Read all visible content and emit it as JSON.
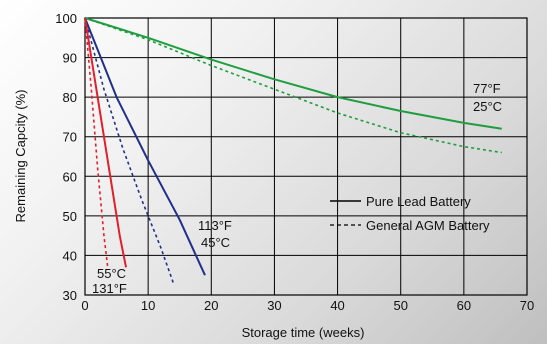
{
  "chart_data": {
    "type": "line",
    "title": "",
    "xlabel": "Storage time (weeks)",
    "ylabel": "Remaining Capcity (%)",
    "xlim": [
      0,
      70
    ],
    "ylim": [
      30,
      100
    ],
    "xticks": [
      0,
      10,
      20,
      30,
      40,
      50,
      60,
      70
    ],
    "yticks": [
      30,
      40,
      50,
      60,
      70,
      80,
      90,
      100
    ],
    "grid": true,
    "legend": {
      "placement": "right-middle",
      "entries": [
        {
          "label": "Pure Lead Battery",
          "style": "solid"
        },
        {
          "label": "General AGM Battery",
          "style": "dashed"
        }
      ]
    },
    "annotations": [
      {
        "lines": [
          "77°F",
          "25°C"
        ]
      },
      {
        "lines": [
          "113°F",
          "45°C"
        ]
      },
      {
        "lines": [
          "55°C",
          "131°F"
        ]
      }
    ],
    "series": [
      {
        "group": "25C",
        "style": "solid",
        "color": "#1e9e3e",
        "points": [
          [
            0,
            100
          ],
          [
            10,
            95
          ],
          [
            20,
            89.5
          ],
          [
            30,
            84.5
          ],
          [
            40,
            80
          ],
          [
            50,
            76.5
          ],
          [
            60,
            73.5
          ],
          [
            66,
            72
          ]
        ]
      },
      {
        "group": "25C",
        "style": "dashed",
        "color": "#1e9e3e",
        "points": [
          [
            0,
            100
          ],
          [
            10,
            94.5
          ],
          [
            20,
            88
          ],
          [
            30,
            82
          ],
          [
            40,
            76
          ],
          [
            50,
            71
          ],
          [
            60,
            67.5
          ],
          [
            66,
            66
          ]
        ]
      },
      {
        "group": "45C",
        "style": "solid",
        "color": "#1f2f8a",
        "points": [
          [
            0,
            100
          ],
          [
            5,
            80
          ],
          [
            10,
            64
          ],
          [
            15,
            49
          ],
          [
            19,
            35
          ]
        ]
      },
      {
        "group": "45C",
        "style": "dashed",
        "color": "#1f2f8a",
        "points": [
          [
            0,
            100
          ],
          [
            3,
            82
          ],
          [
            6,
            67
          ],
          [
            9,
            54
          ],
          [
            12,
            42
          ],
          [
            14,
            33
          ]
        ]
      },
      {
        "group": "55C",
        "style": "solid",
        "color": "#e0202a",
        "points": [
          [
            0,
            100
          ],
          [
            2,
            80
          ],
          [
            4,
            60
          ],
          [
            5.5,
            45
          ],
          [
            6.5,
            37
          ]
        ]
      },
      {
        "group": "55C",
        "style": "dashed",
        "color": "#e0202a",
        "points": [
          [
            0,
            100
          ],
          [
            1,
            82
          ],
          [
            2,
            62
          ],
          [
            3,
            45
          ],
          [
            3.6,
            37
          ]
        ]
      }
    ]
  }
}
